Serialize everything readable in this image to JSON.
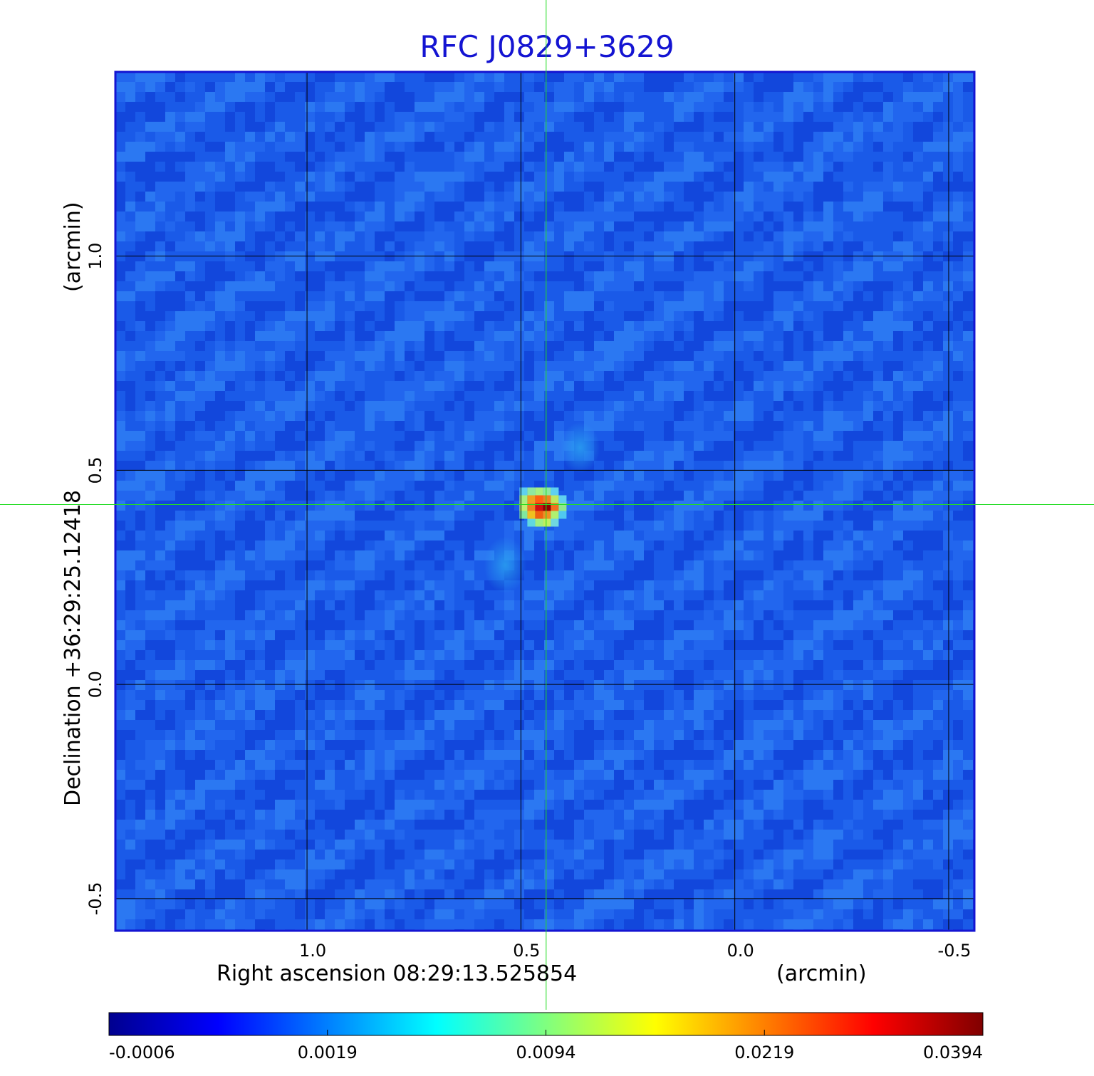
{
  "chart_data": {
    "type": "heatmap",
    "title": "RFC J0829+3629",
    "xlabel": "Right ascension  08:29:13.525854",
    "xunit": "(arcmin)",
    "ylabel": "Declination  +36:29:25.12418",
    "yunit": "(arcmin)",
    "x_ticks": [
      1.0,
      0.5,
      0.0,
      -0.5
    ],
    "x_tick_labels": [
      "1.0",
      "0.5",
      "0.0",
      "-0.5"
    ],
    "y_ticks": [
      1.0,
      0.5,
      0.0,
      -0.5
    ],
    "y_tick_labels": [
      "1.0",
      "0.5",
      "0.0",
      "-0.5"
    ],
    "xlim": [
      1.448,
      -0.56
    ],
    "ylim": [
      -0.575,
      1.43
    ],
    "grid": true,
    "crosshair": {
      "x": 0.441,
      "y": 0.42
    },
    "source_peak": {
      "x": 0.445,
      "y": 0.42,
      "value": 0.0394
    },
    "colorbar": {
      "colormap": "jet",
      "tick_labels": [
        "-0.0006",
        "0.0019",
        "0.0094",
        "0.0219",
        "0.0394"
      ],
      "min": -0.0006,
      "max": 0.0394
    },
    "colors": {
      "title": "#1414d2",
      "frame": "#1414d2",
      "crosshair": "#22dd22",
      "grid": "#000000"
    }
  }
}
